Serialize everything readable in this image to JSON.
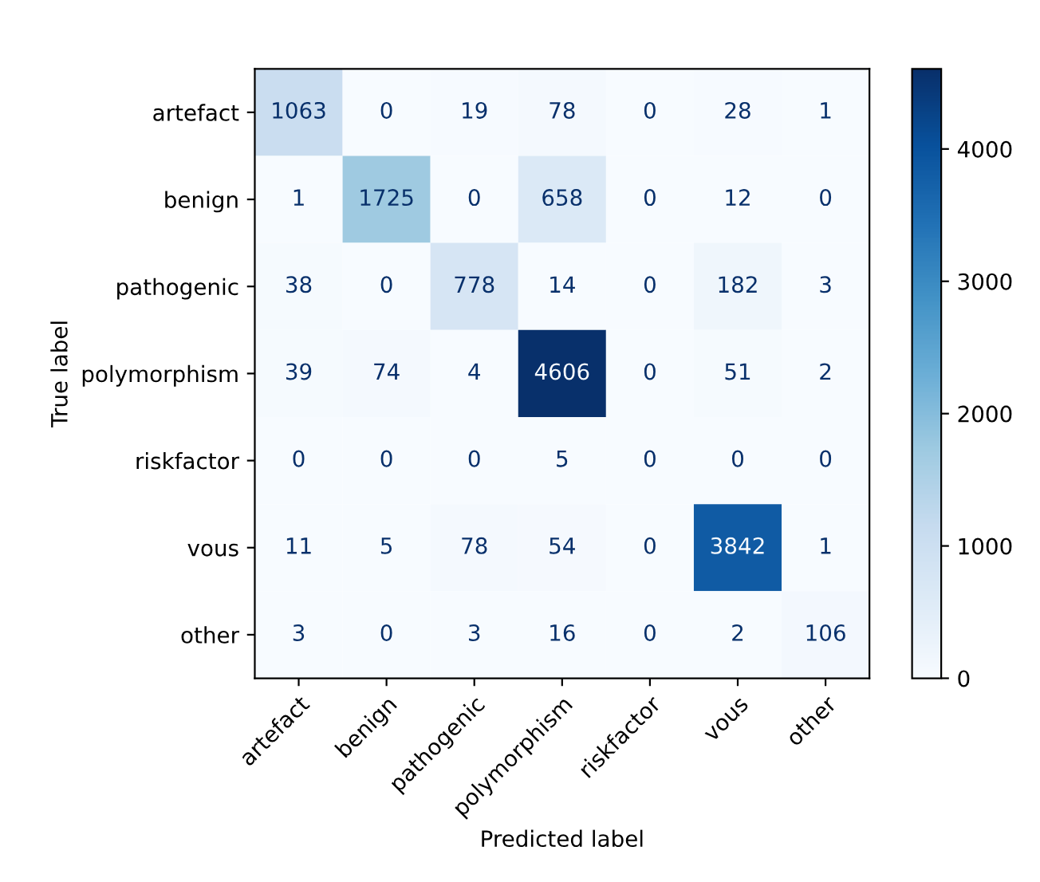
{
  "chart_data": {
    "type": "heatmap",
    "xlabel": "Predicted label",
    "ylabel": "True label",
    "categories": [
      "artefact",
      "benign",
      "pathogenic",
      "polymorphism",
      "riskfactor",
      "vous",
      "other"
    ],
    "y_categories": [
      "artefact",
      "benign",
      "pathogenic",
      "polymorphism",
      "riskfactor",
      "vous",
      "other"
    ],
    "cells": [
      [
        1063,
        0,
        19,
        78,
        0,
        28,
        1
      ],
      [
        1,
        1725,
        0,
        658,
        0,
        12,
        0
      ],
      [
        38,
        0,
        778,
        14,
        0,
        182,
        3
      ],
      [
        39,
        74,
        4,
        4606,
        0,
        51,
        2
      ],
      [
        0,
        0,
        0,
        5,
        0,
        0,
        0
      ],
      [
        11,
        5,
        78,
        54,
        0,
        3842,
        1
      ],
      [
        3,
        0,
        3,
        16,
        0,
        2,
        106
      ]
    ],
    "clim": [
      0,
      4606
    ],
    "cticks": [
      0,
      1000,
      2000,
      3000,
      4000
    ],
    "data_labels": true
  }
}
